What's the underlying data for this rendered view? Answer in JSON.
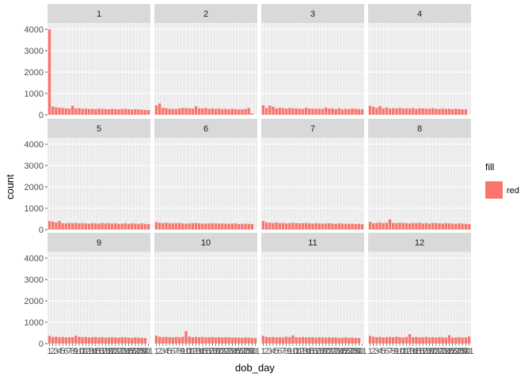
{
  "chart_data": {
    "type": "bar",
    "facet_by": "month",
    "facets": [
      "1",
      "2",
      "3",
      "4",
      "5",
      "6",
      "7",
      "8",
      "9",
      "10",
      "11",
      "12"
    ],
    "xlabel": "dob_day",
    "ylabel": "count",
    "ylim": [
      0,
      4300
    ],
    "y_ticks": [
      0,
      1000,
      2000,
      3000,
      4000
    ],
    "x": [
      1,
      2,
      3,
      4,
      5,
      6,
      7,
      8,
      9,
      10,
      11,
      12,
      13,
      14,
      15,
      16,
      17,
      18,
      19,
      20,
      21,
      22,
      23,
      24,
      25,
      26,
      27,
      28,
      29,
      30,
      31
    ],
    "legend": {
      "title": "fill",
      "entries": [
        {
          "label": "red",
          "color": "#F8766D"
        }
      ],
      "position": "right"
    },
    "bar_color": "#F8766D",
    "grid": true,
    "series": [
      {
        "facet": "1",
        "values": [
          4000,
          390,
          350,
          330,
          320,
          300,
          290,
          420,
          300,
          310,
          280,
          290,
          270,
          280,
          260,
          290,
          280,
          270,
          260,
          280,
          270,
          260,
          270,
          280,
          260,
          250,
          260,
          250,
          240,
          230,
          220
        ]
      },
      {
        "facet": "2",
        "values": [
          450,
          530,
          330,
          310,
          280,
          270,
          270,
          300,
          320,
          310,
          300,
          290,
          400,
          310,
          300,
          320,
          280,
          300,
          280,
          290,
          270,
          280,
          260,
          280,
          270,
          250,
          260,
          270,
          320,
          60,
          0
        ]
      },
      {
        "facet": "3",
        "values": [
          450,
          320,
          430,
          380,
          300,
          330,
          310,
          290,
          320,
          300,
          300,
          290,
          280,
          330,
          290,
          280,
          280,
          290,
          270,
          340,
          290,
          300,
          270,
          310,
          260,
          280,
          270,
          290,
          280,
          270,
          260
        ]
      },
      {
        "facet": "4",
        "values": [
          420,
          380,
          320,
          410,
          300,
          340,
          290,
          310,
          300,
          320,
          290,
          300,
          290,
          310,
          280,
          300,
          300,
          290,
          280,
          310,
          280,
          270,
          290,
          270,
          280,
          260,
          280,
          270,
          260,
          260,
          0
        ]
      },
      {
        "facet": "5",
        "values": [
          400,
          370,
          330,
          400,
          300,
          290,
          310,
          300,
          310,
          290,
          300,
          290,
          280,
          300,
          290,
          280,
          310,
          290,
          300,
          280,
          290,
          270,
          280,
          300,
          270,
          290,
          280,
          270,
          290,
          270,
          260
        ]
      },
      {
        "facet": "6",
        "values": [
          350,
          320,
          300,
          320,
          300,
          290,
          300,
          310,
          290,
          280,
          290,
          300,
          310,
          290,
          280,
          280,
          290,
          300,
          290,
          280,
          290,
          280,
          270,
          280,
          290,
          260,
          270,
          280,
          270,
          260,
          0
        ]
      },
      {
        "facet": "7",
        "values": [
          400,
          330,
          320,
          310,
          330,
          300,
          310,
          290,
          300,
          320,
          300,
          290,
          300,
          310,
          290,
          280,
          300,
          290,
          280,
          290,
          300,
          280,
          270,
          290,
          280,
          270,
          280,
          270,
          260,
          270,
          250
        ]
      },
      {
        "facet": "8",
        "values": [
          360,
          300,
          310,
          330,
          300,
          320,
          480,
          310,
          300,
          320,
          310,
          300,
          290,
          310,
          300,
          320,
          290,
          300,
          280,
          310,
          300,
          290,
          280,
          300,
          290,
          280,
          270,
          290,
          280,
          270,
          260
        ]
      },
      {
        "facet": "9",
        "values": [
          360,
          310,
          320,
          300,
          310,
          290,
          300,
          300,
          370,
          320,
          300,
          310,
          290,
          300,
          310,
          290,
          300,
          280,
          290,
          300,
          290,
          280,
          300,
          290,
          280,
          270,
          290,
          280,
          270,
          260,
          0
        ]
      },
      {
        "facet": "10",
        "values": [
          370,
          320,
          300,
          310,
          300,
          290,
          310,
          300,
          320,
          580,
          330,
          300,
          310,
          300,
          310,
          290,
          300,
          310,
          290,
          300,
          290,
          300,
          290,
          280,
          290,
          280,
          270,
          290,
          280,
          270,
          260
        ]
      },
      {
        "facet": "11",
        "values": [
          360,
          310,
          300,
          310,
          290,
          300,
          290,
          320,
          300,
          380,
          300,
          290,
          310,
          290,
          300,
          290,
          280,
          300,
          290,
          280,
          290,
          280,
          290,
          270,
          280,
          290,
          270,
          280,
          270,
          260,
          0
        ]
      },
      {
        "facet": "12",
        "values": [
          360,
          320,
          300,
          310,
          290,
          300,
          310,
          300,
          320,
          300,
          290,
          310,
          440,
          300,
          310,
          290,
          300,
          310,
          290,
          300,
          290,
          300,
          290,
          280,
          390,
          280,
          290,
          300,
          280,
          290,
          330
        ]
      }
    ]
  }
}
